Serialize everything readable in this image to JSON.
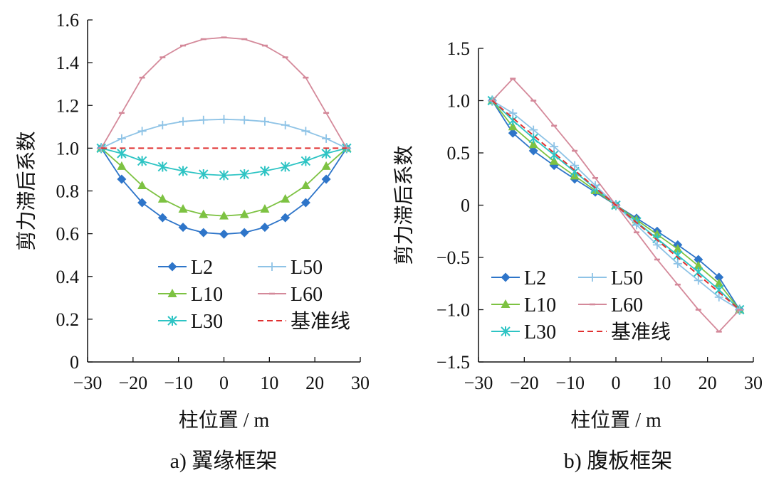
{
  "chart_data": [
    {
      "type": "line",
      "panel": "a",
      "caption": "a)  翼缘框架",
      "xlabel": "柱位置 / m",
      "ylabel": "剪力滞后系数",
      "xlim": [
        -30,
        30
      ],
      "ylim": [
        0,
        1.6
      ],
      "xticks": [
        -30,
        -20,
        -10,
        0,
        10,
        20,
        30
      ],
      "xtick_labels": [
        "−30",
        "−20",
        "−10",
        "0",
        "10",
        "20",
        "30"
      ],
      "yticks": [
        0,
        0.2,
        0.4,
        0.6,
        0.8,
        1.0,
        1.2,
        1.4,
        1.6
      ],
      "ytick_labels": [
        "0",
        "0.2",
        "0.4",
        "0.6",
        "0.8",
        "1.0",
        "1.2",
        "1.4",
        "1.6"
      ],
      "x": [
        -27,
        -22.5,
        -18,
        -13.5,
        -9,
        -4.5,
        0,
        4.5,
        9,
        13.5,
        18,
        22.5,
        27
      ],
      "series": [
        {
          "name": "L2",
          "color": "#2E75C9",
          "marker": "diamond",
          "dashed": false,
          "values": [
            1.0,
            0.855,
            0.745,
            0.675,
            0.63,
            0.605,
            0.598,
            0.605,
            0.63,
            0.675,
            0.745,
            0.855,
            1.0
          ]
        },
        {
          "name": "L10",
          "color": "#7DC242",
          "marker": "triangle",
          "dashed": false,
          "values": [
            1.0,
            0.915,
            0.825,
            0.762,
            0.715,
            0.69,
            0.683,
            0.69,
            0.715,
            0.762,
            0.825,
            0.915,
            1.0
          ]
        },
        {
          "name": "L30",
          "color": "#2EC4C4",
          "marker": "star",
          "dashed": false,
          "values": [
            1.0,
            0.975,
            0.94,
            0.913,
            0.893,
            0.878,
            0.873,
            0.878,
            0.893,
            0.913,
            0.94,
            0.975,
            1.0
          ]
        },
        {
          "name": "L50",
          "color": "#8EC3E6",
          "marker": "plus",
          "dashed": false,
          "values": [
            1.0,
            1.045,
            1.08,
            1.108,
            1.125,
            1.132,
            1.135,
            1.132,
            1.125,
            1.108,
            1.08,
            1.045,
            1.0
          ]
        },
        {
          "name": "L60",
          "color": "#D4899A",
          "marker": "dash",
          "dashed": false,
          "values": [
            1.0,
            1.165,
            1.33,
            1.425,
            1.48,
            1.51,
            1.518,
            1.51,
            1.48,
            1.425,
            1.33,
            1.165,
            1.0
          ]
        },
        {
          "name": "基准线",
          "color": "#E03030",
          "marker": "none",
          "dashed": true,
          "values": [
            1.0,
            1.0,
            1.0,
            1.0,
            1.0,
            1.0,
            1.0,
            1.0,
            1.0,
            1.0,
            1.0,
            1.0,
            1.0
          ]
        }
      ],
      "legend_order": [
        [
          "L2",
          "L50"
        ],
        [
          "L10",
          "L60"
        ],
        [
          "L30",
          "基准线"
        ]
      ]
    },
    {
      "type": "line",
      "panel": "b",
      "caption": "b)  腹板框架",
      "xlabel": "柱位置 / m",
      "ylabel": "剪力滞后系数",
      "xlim": [
        -30,
        30
      ],
      "ylim": [
        -1.5,
        1.5
      ],
      "xticks": [
        -30,
        -20,
        -10,
        0,
        10,
        20,
        30
      ],
      "xtick_labels": [
        "−30",
        "−20",
        "−10",
        "0",
        "10",
        "20",
        "30"
      ],
      "yticks": [
        -1.5,
        -1.0,
        -0.5,
        0,
        0.5,
        1.0,
        1.5
      ],
      "ytick_labels": [
        "−1.5",
        "−1.0",
        "−0.5",
        "0",
        "0.5",
        "1.0",
        "1.5"
      ],
      "x": [
        -27,
        -22.5,
        -18,
        -13.5,
        -9,
        -4.5,
        0,
        4.5,
        9,
        13.5,
        18,
        22.5,
        27
      ],
      "series": [
        {
          "name": "L2",
          "color": "#2E75C9",
          "marker": "diamond",
          "dashed": false,
          "values": [
            1.0,
            0.69,
            0.52,
            0.38,
            0.25,
            0.125,
            0.0,
            -0.125,
            -0.25,
            -0.38,
            -0.52,
            -0.69,
            -1.0
          ]
        },
        {
          "name": "L10",
          "color": "#7DC242",
          "marker": "triangle",
          "dashed": false,
          "values": [
            1.0,
            0.75,
            0.58,
            0.42,
            0.28,
            0.14,
            0.0,
            -0.14,
            -0.28,
            -0.42,
            -0.58,
            -0.75,
            -1.0
          ]
        },
        {
          "name": "L30",
          "color": "#2EC4C4",
          "marker": "star",
          "dashed": false,
          "values": [
            1.0,
            0.81,
            0.64,
            0.48,
            0.32,
            0.16,
            0.0,
            -0.16,
            -0.32,
            -0.48,
            -0.64,
            -0.81,
            -1.0
          ]
        },
        {
          "name": "L50",
          "color": "#8EC3E6",
          "marker": "plus",
          "dashed": false,
          "values": [
            1.0,
            0.88,
            0.72,
            0.56,
            0.38,
            0.19,
            0.0,
            -0.19,
            -0.38,
            -0.56,
            -0.72,
            -0.88,
            -1.0
          ]
        },
        {
          "name": "L60",
          "color": "#D4899A",
          "marker": "dash",
          "dashed": false,
          "values": [
            1.0,
            1.21,
            1.0,
            0.76,
            0.52,
            0.26,
            0.0,
            -0.26,
            -0.52,
            -0.76,
            -1.0,
            -1.21,
            -1.0
          ]
        },
        {
          "name": "基准线",
          "color": "#E03030",
          "marker": "none",
          "dashed": true,
          "values": [
            1.0,
            0.833,
            0.667,
            0.5,
            0.333,
            0.167,
            0.0,
            -0.167,
            -0.333,
            -0.5,
            -0.667,
            -0.833,
            -1.0
          ]
        }
      ],
      "legend_order": [
        [
          "L2",
          "L50"
        ],
        [
          "L10",
          "L60"
        ],
        [
          "L30",
          "基准线"
        ]
      ]
    }
  ]
}
